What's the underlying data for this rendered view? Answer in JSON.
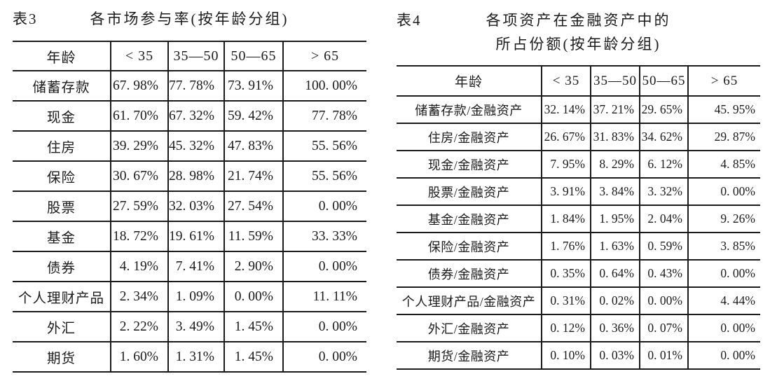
{
  "page": {
    "background": "#ffffff",
    "text_color": "#1b1b1b",
    "border_color": "#1a1a1a"
  },
  "table3": {
    "tag": "表3",
    "title": "各市场参与率(按年龄分组)",
    "columns": [
      "年龄",
      "< 35",
      "35—50",
      "50—65",
      "> 65"
    ],
    "rows": [
      {
        "label": "储蓄存款",
        "values": [
          "67. 98%",
          "77. 78%",
          "73. 91%",
          "100. 00%"
        ]
      },
      {
        "label": "现金",
        "values": [
          "61. 70%",
          "67. 32%",
          "59. 42%",
          "77. 78%"
        ]
      },
      {
        "label": "住房",
        "values": [
          "39. 29%",
          "45. 32%",
          "47. 83%",
          "55. 56%"
        ]
      },
      {
        "label": "保险",
        "values": [
          "30. 67%",
          "28. 98%",
          "21. 74%",
          "55. 56%"
        ]
      },
      {
        "label": "股票",
        "values": [
          "27. 59%",
          "32. 03%",
          "27. 54%",
          "0. 00%"
        ]
      },
      {
        "label": "基金",
        "values": [
          "18. 72%",
          "19. 61%",
          "11. 59%",
          "33. 33%"
        ]
      },
      {
        "label": "债券",
        "values": [
          "4. 19%",
          "7. 41%",
          "2. 90%",
          "0. 00%"
        ]
      },
      {
        "label": "个人理财产品",
        "values": [
          "2. 34%",
          "1. 09%",
          "0. 00%",
          "11. 11%"
        ]
      },
      {
        "label": "外汇",
        "values": [
          "2. 22%",
          "3. 49%",
          "1. 45%",
          "0. 00%"
        ]
      },
      {
        "label": "期货",
        "values": [
          "1. 60%",
          "1. 31%",
          "1. 45%",
          "0. 00%"
        ]
      }
    ]
  },
  "table4": {
    "tag": "表4",
    "title_line1": "各项资产在金融资产中的",
    "title_line2": "所占份额(按年龄分组)",
    "columns": [
      "年龄",
      "< 35",
      "35—50",
      "50—65",
      "> 65"
    ],
    "rows": [
      {
        "label": "储蓄存款/金融资产",
        "values": [
          "32. 14%",
          "37. 21%",
          "29. 65%",
          "45. 95%"
        ]
      },
      {
        "label": "住房/金融资产",
        "values": [
          "26. 67%",
          "31. 83%",
          "34. 62%",
          "29. 87%"
        ]
      },
      {
        "label": "现金/金融资产",
        "values": [
          "7. 95%",
          "8. 29%",
          "6. 12%",
          "4. 85%"
        ]
      },
      {
        "label": "股票/金融资产",
        "values": [
          "3. 91%",
          "3. 84%",
          "3. 32%",
          "0. 00%"
        ]
      },
      {
        "label": "基金/金融资产",
        "values": [
          "1. 84%",
          "1. 95%",
          "2. 04%",
          "9. 26%"
        ]
      },
      {
        "label": "保险/金融资产",
        "values": [
          "1. 76%",
          "1. 63%",
          "0. 59%",
          "3. 85%"
        ]
      },
      {
        "label": "债券/金融资产",
        "values": [
          "0. 35%",
          "0. 64%",
          "0. 43%",
          "0. 00%"
        ]
      },
      {
        "label": "个人理财产品/金融资产",
        "values": [
          "0. 31%",
          "0. 02%",
          "0. 00%",
          "4. 44%"
        ]
      },
      {
        "label": "外汇/金融资产",
        "values": [
          "0. 12%",
          "0. 36%",
          "0. 07%",
          "0. 00%"
        ]
      },
      {
        "label": "期货/金融资产",
        "values": [
          "0. 10%",
          "0. 03%",
          "0. 01%",
          "0. 00%"
        ]
      }
    ]
  }
}
